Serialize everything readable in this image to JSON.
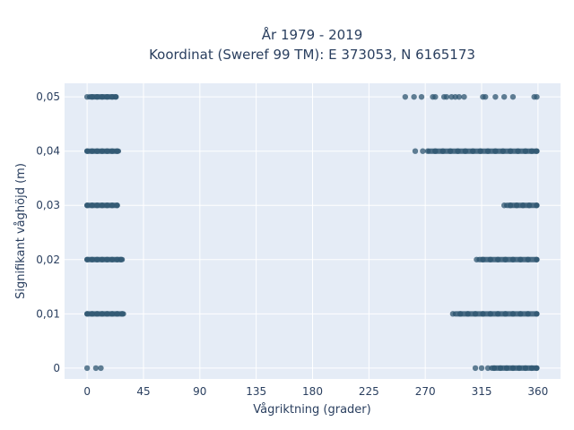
{
  "chart_data": {
    "type": "scatter",
    "title": [
      "År 1979 - 2019",
      "Koordinat (Sweref 99 TM): E 373053, N 6165173"
    ],
    "xlabel": "Vågriktning (grader)",
    "ylabel": "Signifikant våghöjd (m)",
    "xlim": [
      -18,
      378
    ],
    "ylim": [
      -0.002,
      0.0525
    ],
    "xticks": [
      0,
      45,
      90,
      135,
      180,
      225,
      270,
      315,
      360
    ],
    "xtick_labels": [
      "0",
      "45",
      "90",
      "135",
      "180",
      "225",
      "270",
      "315",
      "360"
    ],
    "yticks": [
      0,
      0.01,
      0.02,
      0.03,
      0.04,
      0.05
    ],
    "ytick_labels": [
      "0",
      "0,01",
      "0,02",
      "0,03",
      "0,04",
      "0,05"
    ],
    "grid": true,
    "background": "#e5ecf6",
    "marker_color": "#2e5570",
    "series": [
      {
        "points": [
          {
            "x": 0,
            "y": 0
          },
          {
            "x": 7,
            "y": 0
          },
          {
            "x": 11,
            "y": 0
          },
          {
            "x": 310,
            "y": 0
          },
          {
            "x": 315,
            "y": 0
          },
          {
            "x": 320,
            "y": 0
          },
          {
            "x": 325,
            "y": 0
          },
          {
            "x": 330,
            "y": 0
          },
          {
            "x": 335,
            "y": 0
          },
          {
            "x": 340,
            "y": 0
          },
          {
            "x": 345,
            "y": 0
          },
          {
            "x": 350,
            "y": 0
          },
          {
            "x": 355,
            "y": 0
          },
          {
            "x": 359,
            "y": 0
          },
          {
            "x": 0,
            "y": 0.01
          },
          {
            "x": 4,
            "y": 0.01
          },
          {
            "x": 8,
            "y": 0.01
          },
          {
            "x": 12,
            "y": 0.01
          },
          {
            "x": 16,
            "y": 0.01
          },
          {
            "x": 20,
            "y": 0.01
          },
          {
            "x": 24,
            "y": 0.01
          },
          {
            "x": 28,
            "y": 0.01
          },
          {
            "x": 292,
            "y": 0.01
          },
          {
            "x": 298,
            "y": 0.01
          },
          {
            "x": 304,
            "y": 0.01
          },
          {
            "x": 310,
            "y": 0.01
          },
          {
            "x": 316,
            "y": 0.01
          },
          {
            "x": 322,
            "y": 0.01
          },
          {
            "x": 328,
            "y": 0.01
          },
          {
            "x": 334,
            "y": 0.01
          },
          {
            "x": 340,
            "y": 0.01
          },
          {
            "x": 346,
            "y": 0.01
          },
          {
            "x": 352,
            "y": 0.01
          },
          {
            "x": 359,
            "y": 0.01
          },
          {
            "x": 0,
            "y": 0.02
          },
          {
            "x": 4,
            "y": 0.02
          },
          {
            "x": 8,
            "y": 0.02
          },
          {
            "x": 12,
            "y": 0.02
          },
          {
            "x": 16,
            "y": 0.02
          },
          {
            "x": 20,
            "y": 0.02
          },
          {
            "x": 24,
            "y": 0.02
          },
          {
            "x": 27,
            "y": 0.02
          },
          {
            "x": 311,
            "y": 0.02
          },
          {
            "x": 316,
            "y": 0.02
          },
          {
            "x": 322,
            "y": 0.02
          },
          {
            "x": 328,
            "y": 0.02
          },
          {
            "x": 334,
            "y": 0.02
          },
          {
            "x": 340,
            "y": 0.02
          },
          {
            "x": 346,
            "y": 0.02
          },
          {
            "x": 352,
            "y": 0.02
          },
          {
            "x": 359,
            "y": 0.02
          },
          {
            "x": 0,
            "y": 0.03
          },
          {
            "x": 4,
            "y": 0.03
          },
          {
            "x": 8,
            "y": 0.03
          },
          {
            "x": 12,
            "y": 0.03
          },
          {
            "x": 16,
            "y": 0.03
          },
          {
            "x": 20,
            "y": 0.03
          },
          {
            "x": 24,
            "y": 0.03
          },
          {
            "x": 333,
            "y": 0.03
          },
          {
            "x": 338,
            "y": 0.03
          },
          {
            "x": 343,
            "y": 0.03
          },
          {
            "x": 348,
            "y": 0.03
          },
          {
            "x": 353,
            "y": 0.03
          },
          {
            "x": 359,
            "y": 0.03
          },
          {
            "x": 0,
            "y": 0.04
          },
          {
            "x": 4,
            "y": 0.04
          },
          {
            "x": 8,
            "y": 0.04
          },
          {
            "x": 12,
            "y": 0.04
          },
          {
            "x": 16,
            "y": 0.04
          },
          {
            "x": 20,
            "y": 0.04
          },
          {
            "x": 24,
            "y": 0.04
          },
          {
            "x": 262,
            "y": 0.04
          },
          {
            "x": 268,
            "y": 0.04
          },
          {
            "x": 272,
            "y": 0.04
          },
          {
            "x": 278,
            "y": 0.04
          },
          {
            "x": 284,
            "y": 0.04
          },
          {
            "x": 290,
            "y": 0.04
          },
          {
            "x": 296,
            "y": 0.04
          },
          {
            "x": 302,
            "y": 0.04
          },
          {
            "x": 308,
            "y": 0.04
          },
          {
            "x": 314,
            "y": 0.04
          },
          {
            "x": 320,
            "y": 0.04
          },
          {
            "x": 326,
            "y": 0.04
          },
          {
            "x": 332,
            "y": 0.04
          },
          {
            "x": 338,
            "y": 0.04
          },
          {
            "x": 344,
            "y": 0.04
          },
          {
            "x": 350,
            "y": 0.04
          },
          {
            "x": 355,
            "y": 0.04
          },
          {
            "x": 359,
            "y": 0.04
          },
          {
            "x": 0,
            "y": 0.05
          },
          {
            "x": 4,
            "y": 0.05
          },
          {
            "x": 8,
            "y": 0.05
          },
          {
            "x": 12,
            "y": 0.05
          },
          {
            "x": 16,
            "y": 0.05
          },
          {
            "x": 20,
            "y": 0.05
          },
          {
            "x": 23,
            "y": 0.05
          },
          {
            "x": 254,
            "y": 0.05
          },
          {
            "x": 261,
            "y": 0.05
          },
          {
            "x": 267,
            "y": 0.05
          },
          {
            "x": 276,
            "y": 0.05
          },
          {
            "x": 278,
            "y": 0.05
          },
          {
            "x": 285,
            "y": 0.05
          },
          {
            "x": 287,
            "y": 0.05
          },
          {
            "x": 291,
            "y": 0.05
          },
          {
            "x": 294,
            "y": 0.05
          },
          {
            "x": 297,
            "y": 0.05
          },
          {
            "x": 301,
            "y": 0.05
          },
          {
            "x": 316,
            "y": 0.05
          },
          {
            "x": 318,
            "y": 0.05
          },
          {
            "x": 326,
            "y": 0.05
          },
          {
            "x": 333,
            "y": 0.05
          },
          {
            "x": 340,
            "y": 0.05
          },
          {
            "x": 357,
            "y": 0.05
          },
          {
            "x": 359,
            "y": 0.05
          }
        ],
        "bands": [
          {
            "y": 0,
            "ranges": [
              [
                323,
                359
              ]
            ]
          },
          {
            "y": 0.01,
            "ranges": [
              [
                0,
                29
              ],
              [
                294,
                359
              ]
            ]
          },
          {
            "y": 0.02,
            "ranges": [
              [
                0,
                28
              ],
              [
                313,
                359
              ]
            ]
          },
          {
            "y": 0.03,
            "ranges": [
              [
                0,
                24
              ],
              [
                335,
                359
              ]
            ]
          },
          {
            "y": 0.04,
            "ranges": [
              [
                0,
                25
              ],
              [
                273,
                359
              ]
            ]
          },
          {
            "y": 0.05,
            "ranges": [
              [
                2,
                23
              ]
            ]
          }
        ]
      }
    ]
  }
}
